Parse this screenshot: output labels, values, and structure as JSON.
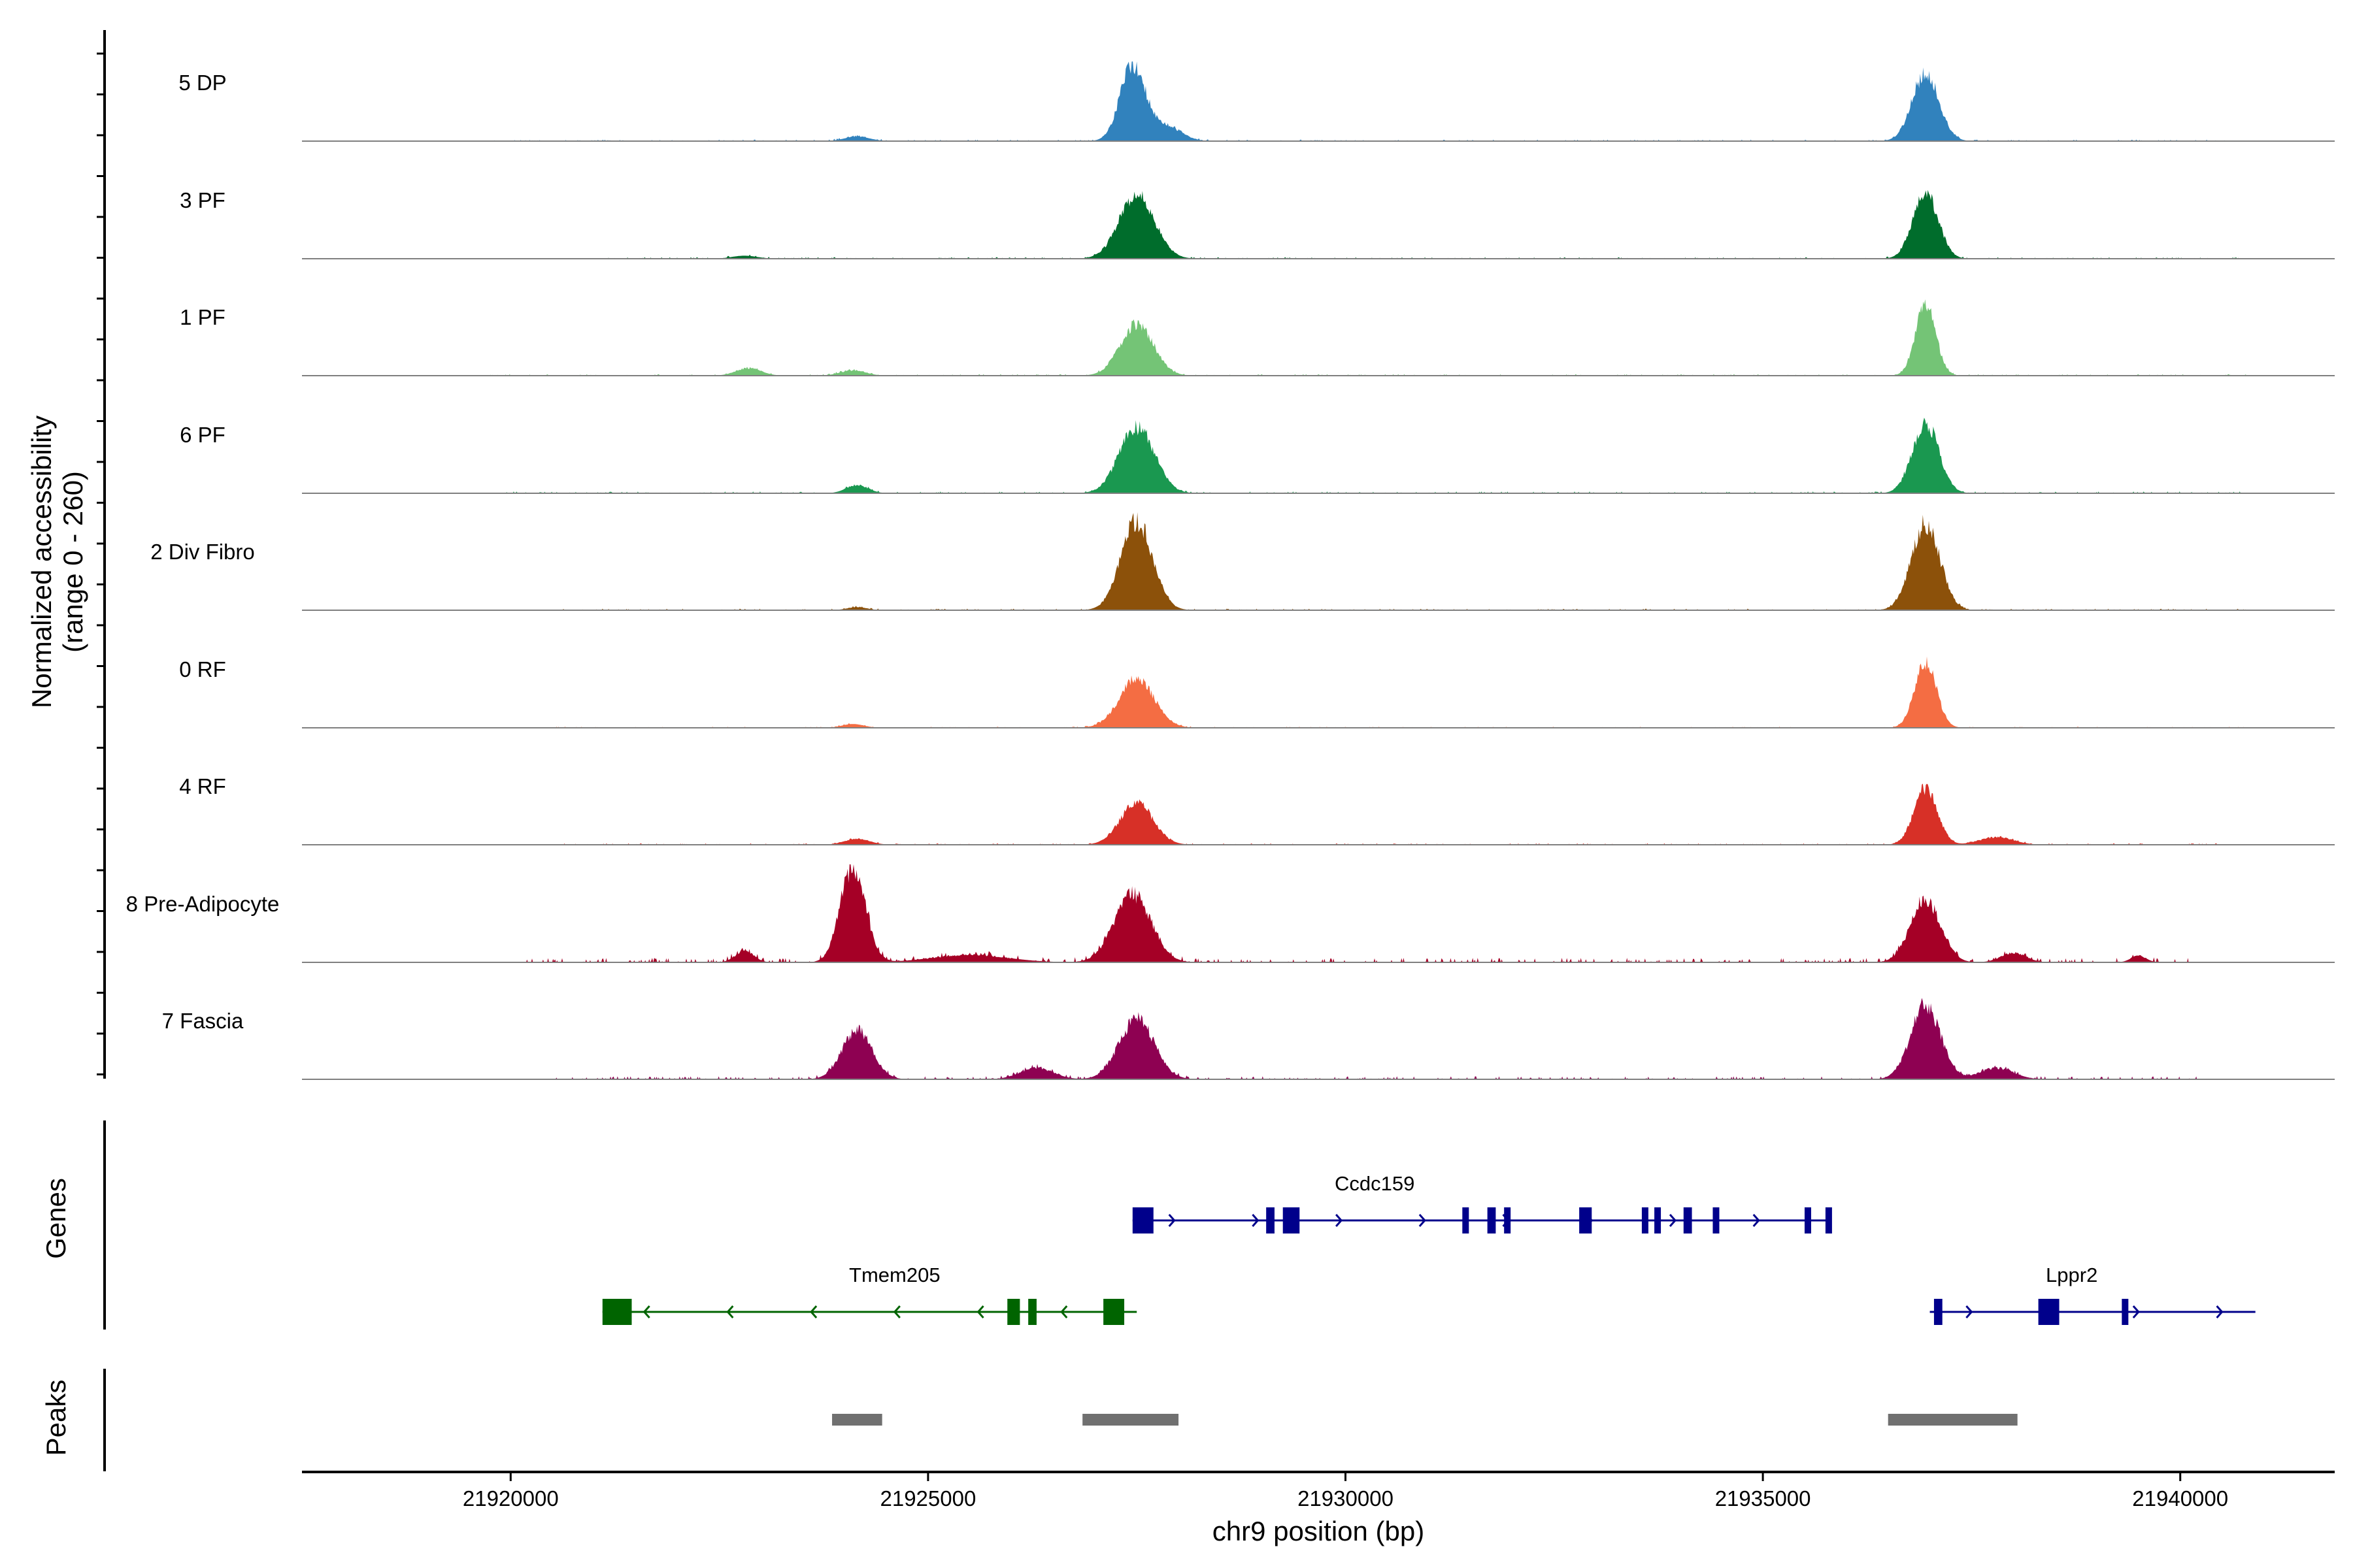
{
  "chart_data": {
    "type": "area",
    "title": "",
    "chromosome": "chr9",
    "xlabel": "chr9 position (bp)",
    "ylabel": [
      "Normalized accessibility",
      "(range 0 - 260)"
    ],
    "xlim": [
      21917500,
      21941850
    ],
    "ylim": [
      0,
      260
    ],
    "x_ticks": [
      21920000,
      21925000,
      21930000,
      21935000,
      21940000
    ],
    "x_tick_labels": [
      "21920000",
      "21925000",
      "21930000",
      "21935000",
      "21940000"
    ],
    "tracks": [
      {
        "name": "5 DP",
        "color": "#3182BD",
        "peaks": [
          [
            21924150,
            12,
            150
          ],
          [
            21927450,
            200,
            150
          ],
          [
            21927850,
            40,
            180
          ],
          [
            21936950,
            180,
            160
          ]
        ],
        "noise": 4,
        "range": [
          21919700,
          21940800
        ]
      },
      {
        "name": "3 PF",
        "color": "#006D2C",
        "peaks": [
          [
            21922800,
            8,
            150
          ],
          [
            21927500,
            170,
            210
          ],
          [
            21936950,
            175,
            150
          ]
        ],
        "noise": 4,
        "range": [
          21921100,
          21940800
        ]
      },
      {
        "name": "1 PF",
        "color": "#74C476",
        "peaks": [
          [
            21922850,
            20,
            150
          ],
          [
            21924100,
            14,
            150
          ],
          [
            21927500,
            135,
            200
          ],
          [
            21936950,
            195,
            120
          ]
        ],
        "noise": 4,
        "range": [
          21919700,
          21940800
        ]
      },
      {
        "name": "6 PF",
        "color": "#1A9850",
        "peaks": [
          [
            21924150,
            22,
            130
          ],
          [
            21927500,
            175,
            210
          ],
          [
            21936950,
            180,
            160
          ]
        ],
        "noise": 5,
        "range": [
          21919700,
          21940800
        ]
      },
      {
        "name": "2 Div Fibro",
        "color": "#8C510A",
        "peaks": [
          [
            21924150,
            8,
            120
          ],
          [
            21927500,
            235,
            190
          ],
          [
            21936950,
            230,
            170
          ]
        ],
        "noise": 4,
        "range": [
          21920500,
          21940800
        ]
      },
      {
        "name": "0 RF",
        "color": "#F46D43",
        "peaks": [
          [
            21924100,
            10,
            130
          ],
          [
            21927500,
            130,
            210
          ],
          [
            21936950,
            170,
            130
          ]
        ],
        "noise": 3,
        "range": [
          21920500,
          21940800
        ]
      },
      {
        "name": "4 RF",
        "color": "#D73027",
        "peaks": [
          [
            21924150,
            16,
            150
          ],
          [
            21927500,
            110,
            200
          ],
          [
            21936950,
            150,
            140
          ],
          [
            21937800,
            20,
            200
          ]
        ],
        "noise": 4,
        "range": [
          21920500,
          21940800
        ]
      },
      {
        "name": "8 Pre-Adipocyte",
        "color": "#A50026",
        "peaks": [
          [
            21922800,
            30,
            110
          ],
          [
            21924100,
            255,
            150
          ],
          [
            21925500,
            20,
            450
          ],
          [
            21927450,
            180,
            220
          ],
          [
            21936950,
            165,
            180
          ],
          [
            21938000,
            25,
            150
          ],
          [
            21939500,
            18,
            90
          ]
        ],
        "noise": 12,
        "range": [
          21920100,
          21940100
        ]
      },
      {
        "name": "7 Fascia",
        "color": "#8E0152",
        "peaks": [
          [
            21924150,
            130,
            180
          ],
          [
            21926300,
            30,
            200
          ],
          [
            21927500,
            160,
            210
          ],
          [
            21936950,
            195,
            180
          ],
          [
            21937800,
            30,
            200
          ]
        ],
        "noise": 8,
        "range": [
          21920500,
          21940200
        ]
      }
    ],
    "genes": [
      {
        "name": "Ccdc159",
        "strand": "+",
        "color": "#00008B",
        "start": 21927450,
        "end": 21935800,
        "exons": [
          [
            21927450,
            21927700
          ],
          [
            21929050,
            21929150
          ],
          [
            21929250,
            21929450
          ],
          [
            21931400,
            21931450
          ],
          [
            21931700,
            21931800
          ],
          [
            21931900,
            21931950
          ],
          [
            21932800,
            21932950
          ],
          [
            21933550,
            21933600
          ],
          [
            21933700,
            21933750
          ],
          [
            21934050,
            21934150
          ],
          [
            21934400,
            21934450
          ],
          [
            21935500,
            21935550
          ],
          [
            21935750,
            21935800
          ]
        ]
      },
      {
        "name": "Tmem205",
        "strand": "-",
        "color": "#006400",
        "start": 21921100,
        "end": 21927500,
        "exons": [
          [
            21921100,
            21921450
          ],
          [
            21925950,
            21926100
          ],
          [
            21926200,
            21926300
          ],
          [
            21927100,
            21927350
          ]
        ]
      },
      {
        "name": "Lppr2",
        "strand": "+",
        "color": "#00008B",
        "start": 21937000,
        "end": 21940900,
        "exons": [
          [
            21937050,
            21937150
          ],
          [
            21938300,
            21938550
          ],
          [
            21939300,
            21939350
          ]
        ]
      }
    ],
    "peak_regions": [
      [
        21923850,
        21924450
      ],
      [
        21926850,
        21928000
      ],
      [
        21936500,
        21938050
      ]
    ]
  }
}
